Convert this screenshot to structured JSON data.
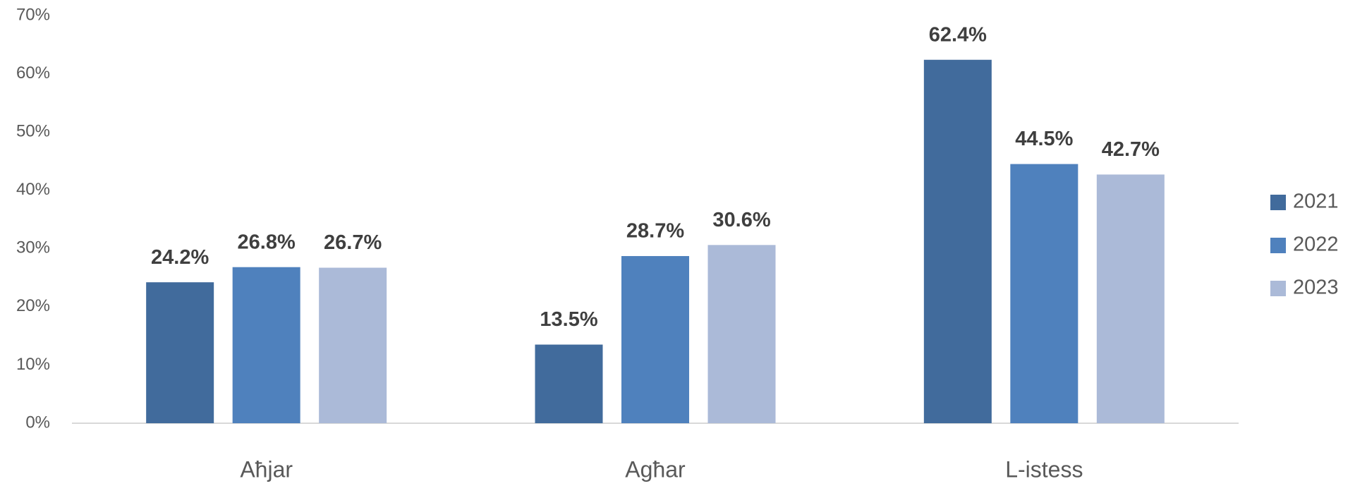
{
  "chart_data": {
    "type": "bar",
    "categories": [
      "Aħjar",
      "Agħar",
      "L-istess"
    ],
    "series": [
      {
        "name": "2021",
        "color": "#416b9c",
        "values": [
          24.2,
          13.5,
          62.4
        ],
        "value_labels": [
          "24.2%",
          "13.5%",
          "62.4%"
        ]
      },
      {
        "name": "2022",
        "color": "#4f81bd",
        "values": [
          26.8,
          28.7,
          44.5
        ],
        "value_labels": [
          "26.8%",
          "28.7%",
          "44.5%"
        ]
      },
      {
        "name": "2023",
        "color": "#abbad8",
        "values": [
          26.7,
          30.6,
          42.7
        ],
        "value_labels": [
          "26.7%",
          "30.6%",
          "42.7%"
        ]
      }
    ],
    "ylim": [
      0,
      70
    ],
    "yticks": [
      {
        "value": 0,
        "label": "0%"
      },
      {
        "value": 10,
        "label": "10%"
      },
      {
        "value": 20,
        "label": "20%"
      },
      {
        "value": 30,
        "label": "30%"
      },
      {
        "value": 40,
        "label": "40%"
      },
      {
        "value": 50,
        "label": "50%"
      },
      {
        "value": 60,
        "label": "60%"
      },
      {
        "value": 70,
        "label": "70%"
      }
    ],
    "grid": false,
    "legend": "right"
  }
}
